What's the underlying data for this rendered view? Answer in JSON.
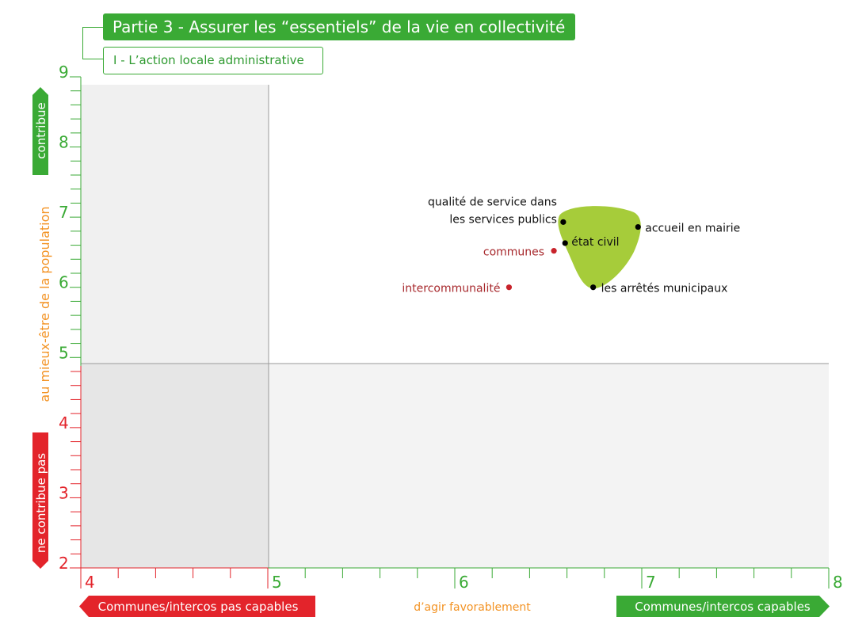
{
  "header": {
    "title": "Partie 3 - Assurer les “essentiels” de la vie en collectivité",
    "subtitle": "I - L’action locale administrative"
  },
  "y_axis": {
    "top_label": "contribue",
    "middle_label": "au mieux-être de la population",
    "bottom_label": "ne contribue pas"
  },
  "x_axis": {
    "left_label": "Communes/intercos pas capables",
    "middle_label": "d’agir favorablement",
    "right_label": "Communes/intercos capables"
  },
  "colors": {
    "green": "#3aaa35",
    "red": "#e3242b",
    "orange": "#f39324",
    "blob": "#a6cc3a",
    "point_red": "#c8232b",
    "label_red": "#a7282c",
    "quadrant_gray": "#f0f0f0",
    "quadrant_gray_dark": "#e6e6e6"
  },
  "chart_data": {
    "type": "scatter",
    "xlim": [
      4,
      8
    ],
    "ylim": [
      2,
      9
    ],
    "x_ticks": [
      "4",
      "5",
      "6",
      "7",
      "8"
    ],
    "y_ticks": [
      "2",
      "3",
      "4",
      "5",
      "6",
      "7",
      "8",
      "9"
    ],
    "quadrant_split": {
      "x": 5,
      "y": 4.88
    },
    "points": [
      {
        "label_lines": [
          "qualité de service dans",
          "les services publics"
        ],
        "x": 6.58,
        "y": 6.93,
        "color": "black"
      },
      {
        "label_lines": [
          "accueil en mairie"
        ],
        "x": 6.98,
        "y": 6.86,
        "color": "black"
      },
      {
        "label_lines": [
          "état civil"
        ],
        "x": 6.59,
        "y": 6.63,
        "color": "black"
      },
      {
        "label_lines": [
          "les arrêtés municipaux"
        ],
        "x": 6.74,
        "y": 6.0,
        "color": "black"
      },
      {
        "label_lines": [
          "communes"
        ],
        "x": 6.53,
        "y": 6.52,
        "color": "red"
      },
      {
        "label_lines": [
          "intercommunalité"
        ],
        "x": 6.29,
        "y": 6.0,
        "color": "red"
      }
    ]
  }
}
